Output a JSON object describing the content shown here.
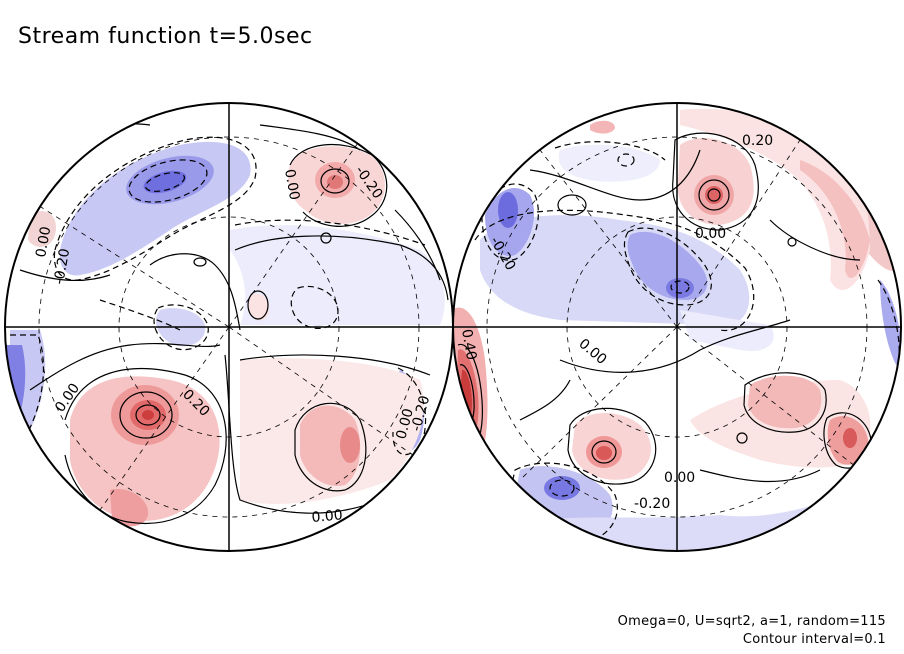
{
  "title": "Stream function t=5.0sec",
  "caption": {
    "line1": "Omega=0, U=sqrt2, a=1, random=115",
    "line2": "Contour interval=0.1"
  },
  "hemispheres": [
    {
      "name": "left-hemisphere",
      "contour_labels": [
        "0.00",
        "-0.20",
        "0.00",
        "-0.20",
        "0.00",
        "0.20",
        "0.00",
        "0.00",
        "-0.20"
      ]
    },
    {
      "name": "right-hemisphere",
      "contour_labels": [
        "0.20",
        "0.00",
        "-0.20",
        "0.00",
        "0.40",
        "0.00",
        "-0.20"
      ]
    }
  ],
  "colors": {
    "positive": "#e88a8a",
    "positive_light": "#fbe3e3",
    "negative": "#8a8ae8",
    "negative_light": "#e3e3fb",
    "line": "#000000"
  }
}
